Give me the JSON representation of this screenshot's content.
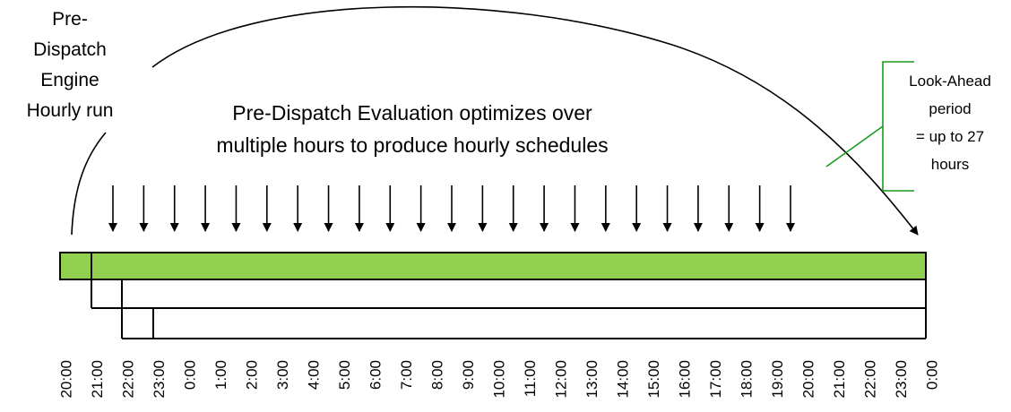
{
  "engine_label": [
    "Pre-",
    "Dispatch",
    "Engine",
    "Hourly run"
  ],
  "evaluation_text": [
    "Pre-Dispatch Evaluation optimizes over",
    "multiple hours to produce hourly schedules"
  ],
  "look_ahead_label": [
    "Look-Ahead",
    "period",
    "= up to 27",
    "hours"
  ],
  "timeline": [
    "20:00",
    "21:00",
    "22:00",
    "23:00",
    "0:00",
    "1:00",
    "2:00",
    "3:00",
    "4:00",
    "5:00",
    "6:00",
    "7:00",
    "8:00",
    "9:00",
    "10:00",
    "11:00",
    "12:00",
    "13:00",
    "14:00",
    "15:00",
    "16:00",
    "17:00",
    "18:00",
    "19:00",
    "20:00",
    "21:00",
    "22:00",
    "23:00",
    "0:00"
  ]
}
